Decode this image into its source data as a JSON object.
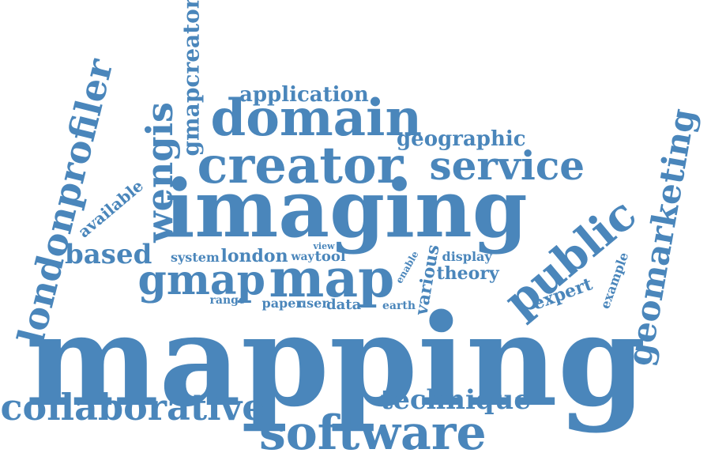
{
  "colors": {
    "text": "#4a86bb",
    "background": "#ffffff"
  },
  "words": {
    "mapping": "mapping",
    "imaging": "imaging",
    "creator": "creator",
    "domain": "domain",
    "service": "service",
    "software": "software",
    "map": "map",
    "gmap": "gmap",
    "public": "public",
    "collaborative": "collaborative",
    "londonprofiler": "londonprofiler",
    "geomarketing": "geomarketing",
    "wengis": "wengis",
    "gmapcreator": "gmapcreator",
    "based": "based",
    "technique": "technique",
    "application": "application",
    "geographic": "geographic",
    "available": "available",
    "system": "system",
    "london": "london",
    "way": "way",
    "view": "view",
    "tool": "tool",
    "enable": "enable",
    "various": "various",
    "display": "display",
    "theory": "theory",
    "range": "range",
    "paper": "paper",
    "user": "user",
    "data": "data",
    "earth": "earth",
    "expert": "expert",
    "example": "example"
  }
}
